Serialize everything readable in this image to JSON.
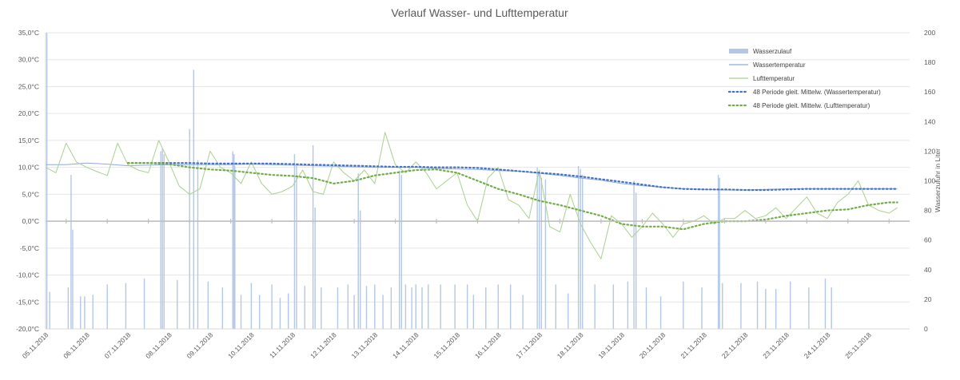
{
  "chart_data": {
    "type": "line",
    "title": "Verlauf Wasser- und Lufttemperatur",
    "y_left": {
      "range": [
        -20,
        35
      ],
      "tick_values": [
        -20,
        -15,
        -10,
        -5,
        0,
        5,
        10,
        15,
        20,
        25,
        30,
        35
      ],
      "tick_labels": [
        "-20,0°C",
        "-15,0°C",
        "-10,0°C",
        "-5,0°C",
        "0,0°C",
        "5,0°C",
        "10,0°C",
        "15,0°C",
        "20,0°C",
        "25,0°C",
        "30,0°C",
        "35,0°C"
      ]
    },
    "y_right": {
      "label": "Wasserzufuhr in Liter",
      "range": [
        0,
        200
      ],
      "tick_values": [
        0,
        20,
        40,
        60,
        80,
        100,
        120,
        140,
        160,
        180,
        200
      ],
      "tick_labels": [
        "0",
        "20",
        "40",
        "60",
        "80",
        "100",
        "120",
        "140",
        "160",
        "180",
        "200"
      ]
    },
    "x_axis": {
      "range_days": [
        5.0,
        26.0
      ],
      "tick_labels": [
        "05.11.2018",
        "06.11.2018",
        "07.11.2018",
        "08.11.2018",
        "09.11.2018",
        "10.11.2018",
        "11.11.2018",
        "12.11.2018",
        "13.11.2018",
        "14.11.2018",
        "15.11.2018",
        "16.11.2018",
        "17.11.2018",
        "18.11.2018",
        "19.11.2018",
        "20.11.2018",
        "21.11.2018",
        "22.11.2018",
        "23.11.2018",
        "24.11.2018",
        "25.11.2018"
      ]
    },
    "legend": {
      "placement": "top-right",
      "entries": [
        {
          "label": "Wasserzulauf",
          "color": "#b4c7e7",
          "style": "bar"
        },
        {
          "label": "Wassertemperatur",
          "color": "#8faadc",
          "style": "line"
        },
        {
          "label": "Lufttemperatur",
          "color": "#a9d18e",
          "style": "line"
        },
        {
          "label": "48 Periode gleit. Mittelw. (Wassertemperatur)",
          "color": "#4472c4",
          "style": "dotted"
        },
        {
          "label": "48 Periode gleit. Mittelw. (Lufttemperatur)",
          "color": "#70ad47",
          "style": "dotted"
        }
      ]
    },
    "series": [
      {
        "name": "Wassertemperatur",
        "color": "#8faadc",
        "points": [
          [
            5.0,
            10.5
          ],
          [
            5.5,
            10.5
          ],
          [
            6.0,
            10.8
          ],
          [
            6.5,
            10.6
          ],
          [
            7.0,
            10.3
          ],
          [
            7.5,
            10.4
          ],
          [
            8.0,
            10.5
          ],
          [
            8.5,
            10.5
          ],
          [
            9.0,
            10.5
          ],
          [
            9.5,
            10.5
          ],
          [
            10.0,
            10.6
          ],
          [
            10.5,
            10.5
          ],
          [
            11.0,
            10.4
          ],
          [
            11.5,
            10.3
          ],
          [
            12.0,
            10.2
          ],
          [
            12.5,
            10.1
          ],
          [
            13.0,
            10.0
          ],
          [
            13.5,
            10.0
          ],
          [
            14.0,
            10.0
          ],
          [
            14.5,
            9.8
          ],
          [
            15.0,
            9.7
          ],
          [
            15.5,
            9.6
          ],
          [
            16.0,
            9.4
          ],
          [
            16.5,
            9.3
          ],
          [
            17.0,
            8.9
          ],
          [
            17.5,
            8.5
          ],
          [
            18.0,
            8.0
          ],
          [
            18.5,
            7.6
          ],
          [
            19.0,
            7.0
          ],
          [
            19.5,
            6.6
          ],
          [
            20.0,
            6.3
          ],
          [
            20.5,
            6.0
          ],
          [
            21.0,
            5.9
          ],
          [
            21.5,
            5.8
          ],
          [
            22.0,
            5.8
          ],
          [
            22.5,
            5.9
          ],
          [
            23.0,
            6.0
          ],
          [
            23.5,
            6.0
          ],
          [
            24.0,
            6.0
          ],
          [
            24.5,
            6.0
          ],
          [
            25.0,
            6.0
          ],
          [
            25.5,
            6.0
          ],
          [
            25.7,
            6.0
          ]
        ]
      },
      {
        "name": "Lufttemperatur",
        "color": "#a9d18e",
        "points": [
          [
            5.0,
            10.0
          ],
          [
            5.25,
            9.0
          ],
          [
            5.5,
            14.5
          ],
          [
            5.75,
            11.0
          ],
          [
            6.0,
            10.0
          ],
          [
            6.25,
            9.2
          ],
          [
            6.5,
            8.5
          ],
          [
            6.75,
            14.5
          ],
          [
            7.0,
            10.5
          ],
          [
            7.25,
            9.5
          ],
          [
            7.5,
            9.0
          ],
          [
            7.75,
            15.0
          ],
          [
            8.0,
            11.0
          ],
          [
            8.25,
            6.5
          ],
          [
            8.5,
            5.0
          ],
          [
            8.75,
            6.0
          ],
          [
            9.0,
            13.0
          ],
          [
            9.25,
            10.0
          ],
          [
            9.5,
            9.0
          ],
          [
            9.75,
            7.0
          ],
          [
            10.0,
            11.0
          ],
          [
            10.25,
            7.0
          ],
          [
            10.5,
            5.0
          ],
          [
            10.75,
            5.5
          ],
          [
            11.0,
            6.5
          ],
          [
            11.25,
            9.5
          ],
          [
            11.5,
            5.5
          ],
          [
            11.75,
            5.0
          ],
          [
            12.0,
            11.0
          ],
          [
            12.25,
            9.0
          ],
          [
            12.5,
            7.5
          ],
          [
            12.75,
            9.5
          ],
          [
            13.0,
            7.0
          ],
          [
            13.25,
            16.5
          ],
          [
            13.5,
            10.5
          ],
          [
            13.75,
            9.0
          ],
          [
            14.0,
            11.0
          ],
          [
            14.25,
            9.0
          ],
          [
            14.5,
            6.0
          ],
          [
            14.75,
            7.5
          ],
          [
            15.0,
            9.0
          ],
          [
            15.25,
            3.0
          ],
          [
            15.5,
            0.0
          ],
          [
            15.75,
            8.0
          ],
          [
            16.0,
            10.0
          ],
          [
            16.25,
            4.0
          ],
          [
            16.5,
            3.0
          ],
          [
            16.75,
            0.5
          ],
          [
            17.0,
            9.5
          ],
          [
            17.25,
            -1.0
          ],
          [
            17.5,
            -2.0
          ],
          [
            17.75,
            5.0
          ],
          [
            18.0,
            -0.5
          ],
          [
            18.25,
            -4.0
          ],
          [
            18.5,
            -7.0
          ],
          [
            18.75,
            1.0
          ],
          [
            19.0,
            -0.5
          ],
          [
            19.25,
            -3.0
          ],
          [
            19.5,
            -1.0
          ],
          [
            19.75,
            1.5
          ],
          [
            20.0,
            -0.5
          ],
          [
            20.25,
            -3.0
          ],
          [
            20.5,
            -0.5
          ],
          [
            20.75,
            0.0
          ],
          [
            21.0,
            1.0
          ],
          [
            21.25,
            -0.5
          ],
          [
            21.5,
            0.5
          ],
          [
            21.75,
            0.5
          ],
          [
            22.0,
            2.0
          ],
          [
            22.25,
            0.5
          ],
          [
            22.5,
            1.0
          ],
          [
            22.75,
            2.5
          ],
          [
            23.0,
            0.5
          ],
          [
            23.25,
            2.5
          ],
          [
            23.5,
            4.5
          ],
          [
            23.75,
            1.5
          ],
          [
            24.0,
            0.5
          ],
          [
            24.25,
            3.5
          ],
          [
            24.5,
            5.0
          ],
          [
            24.75,
            7.5
          ],
          [
            25.0,
            3.0
          ],
          [
            25.25,
            2.0
          ],
          [
            25.5,
            1.5
          ],
          [
            25.7,
            2.5
          ]
        ]
      },
      {
        "name": "48 Periode gleit. Mittelw. (Wassertemperatur)",
        "color": "#4472c4",
        "points": [
          [
            7.0,
            10.8
          ],
          [
            7.5,
            10.8
          ],
          [
            8.0,
            10.8
          ],
          [
            8.5,
            10.8
          ],
          [
            9.0,
            10.7
          ],
          [
            9.5,
            10.7
          ],
          [
            10.0,
            10.7
          ],
          [
            10.5,
            10.7
          ],
          [
            11.0,
            10.6
          ],
          [
            11.5,
            10.5
          ],
          [
            12.0,
            10.4
          ],
          [
            12.5,
            10.3
          ],
          [
            13.0,
            10.2
          ],
          [
            13.5,
            10.1
          ],
          [
            14.0,
            10.1
          ],
          [
            14.5,
            10.0
          ],
          [
            15.0,
            10.0
          ],
          [
            15.5,
            9.9
          ],
          [
            16.0,
            9.6
          ],
          [
            16.5,
            9.3
          ],
          [
            17.0,
            9.0
          ],
          [
            17.5,
            8.7
          ],
          [
            18.0,
            8.3
          ],
          [
            18.5,
            7.8
          ],
          [
            19.0,
            7.3
          ],
          [
            19.5,
            6.8
          ],
          [
            20.0,
            6.3
          ],
          [
            20.5,
            6.0
          ],
          [
            21.0,
            5.9
          ],
          [
            21.5,
            5.9
          ],
          [
            22.0,
            5.8
          ],
          [
            22.5,
            5.8
          ],
          [
            23.0,
            5.9
          ],
          [
            23.5,
            6.0
          ],
          [
            24.0,
            6.0
          ],
          [
            24.5,
            6.0
          ],
          [
            25.0,
            6.0
          ],
          [
            25.5,
            6.0
          ],
          [
            25.7,
            6.0
          ]
        ]
      },
      {
        "name": "48 Periode gleit. Mittelw. (Lufttemperatur)",
        "color": "#70ad47",
        "points": [
          [
            7.0,
            10.8
          ],
          [
            7.5,
            10.8
          ],
          [
            8.0,
            10.6
          ],
          [
            8.5,
            10.0
          ],
          [
            9.0,
            9.6
          ],
          [
            9.5,
            9.4
          ],
          [
            10.0,
            9.0
          ],
          [
            10.5,
            8.6
          ],
          [
            11.0,
            8.4
          ],
          [
            11.5,
            8.0
          ],
          [
            12.0,
            7.0
          ],
          [
            12.5,
            7.5
          ],
          [
            13.0,
            8.5
          ],
          [
            13.5,
            9.0
          ],
          [
            14.0,
            9.5
          ],
          [
            14.5,
            9.6
          ],
          [
            15.0,
            9.0
          ],
          [
            15.5,
            7.5
          ],
          [
            16.0,
            6.0
          ],
          [
            16.5,
            5.0
          ],
          [
            17.0,
            3.8
          ],
          [
            17.5,
            3.0
          ],
          [
            18.0,
            2.0
          ],
          [
            18.5,
            1.0
          ],
          [
            19.0,
            -0.5
          ],
          [
            19.5,
            -1.0
          ],
          [
            20.0,
            -1.0
          ],
          [
            20.5,
            -1.5
          ],
          [
            21.0,
            -0.5
          ],
          [
            21.5,
            0.0
          ],
          [
            22.0,
            0.0
          ],
          [
            22.5,
            0.3
          ],
          [
            23.0,
            1.0
          ],
          [
            23.5,
            1.5
          ],
          [
            24.0,
            2.0
          ],
          [
            24.5,
            2.2
          ],
          [
            25.0,
            3.0
          ],
          [
            25.5,
            3.5
          ],
          [
            25.7,
            3.5
          ]
        ]
      }
    ],
    "bars": {
      "name": "Wasserzulauf",
      "color": "#b4c7e7",
      "unit": "Liter",
      "points": [
        [
          5.03,
          200
        ],
        [
          5.1,
          25
        ],
        [
          5.55,
          28
        ],
        [
          5.62,
          104
        ],
        [
          5.66,
          67
        ],
        [
          5.85,
          22
        ],
        [
          5.95,
          22
        ],
        [
          6.15,
          23
        ],
        [
          6.5,
          30
        ],
        [
          6.95,
          31
        ],
        [
          7.4,
          34
        ],
        [
          7.8,
          120
        ],
        [
          7.84,
          122
        ],
        [
          7.88,
          118
        ],
        [
          8.2,
          33
        ],
        [
          8.5,
          135
        ],
        [
          8.6,
          175
        ],
        [
          8.7,
          114
        ],
        [
          8.95,
          32
        ],
        [
          9.3,
          28
        ],
        [
          9.55,
          120
        ],
        [
          9.58,
          118
        ],
        [
          9.6,
          110
        ],
        [
          9.75,
          23
        ],
        [
          10.0,
          31
        ],
        [
          10.2,
          23
        ],
        [
          10.5,
          30
        ],
        [
          10.7,
          21
        ],
        [
          10.9,
          24
        ],
        [
          11.05,
          118
        ],
        [
          11.1,
          110
        ],
        [
          11.3,
          29
        ],
        [
          11.5,
          124
        ],
        [
          11.55,
          82
        ],
        [
          11.7,
          28
        ],
        [
          12.1,
          28
        ],
        [
          12.35,
          30
        ],
        [
          12.5,
          23
        ],
        [
          12.6,
          105
        ],
        [
          12.65,
          80
        ],
        [
          12.8,
          29
        ],
        [
          13.0,
          30
        ],
        [
          13.2,
          23
        ],
        [
          13.4,
          28
        ],
        [
          13.6,
          107
        ],
        [
          13.65,
          104
        ],
        [
          13.75,
          30
        ],
        [
          13.9,
          28
        ],
        [
          14.0,
          30
        ],
        [
          14.15,
          28
        ],
        [
          14.3,
          30
        ],
        [
          14.6,
          30
        ],
        [
          14.95,
          30
        ],
        [
          15.25,
          30
        ],
        [
          15.4,
          23
        ],
        [
          15.7,
          28
        ],
        [
          16.0,
          30
        ],
        [
          16.3,
          30
        ],
        [
          16.6,
          23
        ],
        [
          16.95,
          109
        ],
        [
          17.0,
          106
        ],
        [
          17.05,
          102
        ],
        [
          17.15,
          101
        ],
        [
          17.4,
          30
        ],
        [
          17.7,
          24
        ],
        [
          17.95,
          110
        ],
        [
          18.0,
          108
        ],
        [
          18.05,
          104
        ],
        [
          18.35,
          30
        ],
        [
          18.8,
          30
        ],
        [
          19.15,
          32
        ],
        [
          19.3,
          100
        ],
        [
          19.35,
          92
        ],
        [
          19.6,
          28
        ],
        [
          19.95,
          22
        ],
        [
          20.5,
          32
        ],
        [
          20.95,
          28
        ],
        [
          21.35,
          104
        ],
        [
          21.38,
          102
        ],
        [
          21.45,
          31
        ],
        [
          21.9,
          31
        ],
        [
          22.3,
          32
        ],
        [
          22.5,
          27
        ],
        [
          22.75,
          27
        ],
        [
          23.1,
          32
        ],
        [
          23.55,
          28
        ],
        [
          23.95,
          34
        ],
        [
          24.1,
          28
        ]
      ]
    }
  }
}
